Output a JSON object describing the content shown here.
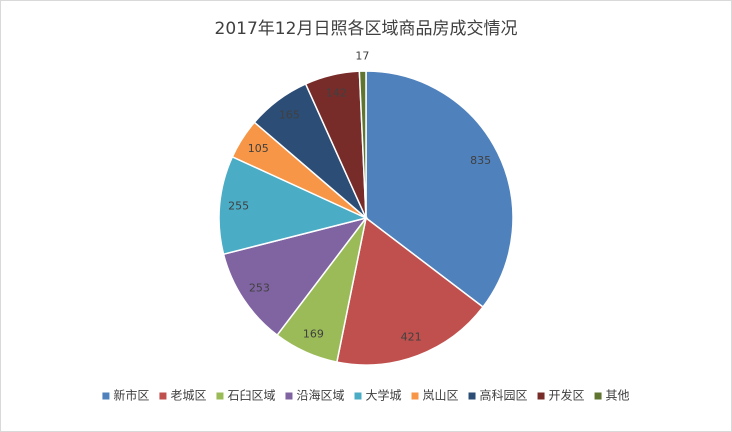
{
  "chart_data": {
    "type": "pie",
    "title": "2017年12月日照各区域商品房成交情况",
    "categories": [
      "新市区",
      "老城区",
      "石臼区域",
      "沿海区域",
      "大学城",
      "岚山区",
      "高科园区",
      "开发区",
      "其他"
    ],
    "values": [
      835,
      421,
      169,
      253,
      255,
      105,
      165,
      142,
      17
    ],
    "colors": [
      "#4f81bd",
      "#c0504d",
      "#9bbb59",
      "#8064a2",
      "#4bacc6",
      "#f79646",
      "#2c4d75",
      "#772c2a",
      "#5f7530"
    ],
    "legend": "bottom"
  }
}
